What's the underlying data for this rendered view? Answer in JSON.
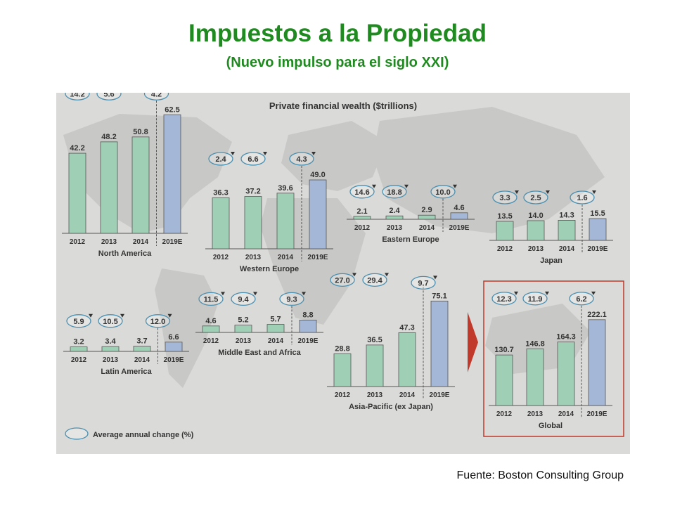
{
  "header": {
    "title": "Impuestos a la Propiedad",
    "subtitle": "(Nuevo impulso para el siglo XXI)"
  },
  "source": "Fuente: Boston Consulting Group",
  "colors": {
    "title": "#1f8a1f",
    "bar_actual": "#9fcfb4",
    "bar_forecast": "#a4b7d6",
    "bubble_outline": "#4a8fb0",
    "background": "#dadad8",
    "map": "#c8c8c6",
    "highlight_box": "#c0392b",
    "arrow": "#c0392b"
  },
  "chart_data": {
    "type": "bar",
    "title": "Private financial wealth ($trillions)",
    "legend": {
      "label": "Average annual change (%)",
      "placement": "bottom-left"
    },
    "categories": [
      "2012",
      "2013",
      "2014",
      "2019E"
    ],
    "regions": [
      {
        "name": "North America",
        "values": [
          42.2,
          48.2,
          50.8,
          62.5
        ],
        "changes": [
          "14.2",
          "5.6",
          "4.2"
        ]
      },
      {
        "name": "Western Europe",
        "values": [
          36.3,
          37.2,
          39.6,
          49.0
        ],
        "changes": [
          "2.4",
          "6.6",
          "4.3"
        ]
      },
      {
        "name": "Eastern Europe",
        "values": [
          2.1,
          2.4,
          2.9,
          4.6
        ],
        "changes": [
          "14.6",
          "18.8",
          "10.0"
        ]
      },
      {
        "name": "Japan",
        "values": [
          13.5,
          14.0,
          14.3,
          15.5
        ],
        "changes": [
          "3.3",
          "2.5",
          "1.6"
        ]
      },
      {
        "name": "Latin America",
        "values": [
          3.2,
          3.4,
          3.7,
          6.6
        ],
        "changes": [
          "5.9",
          "10.5",
          "12.0"
        ]
      },
      {
        "name": "Middle East and Africa",
        "values": [
          4.6,
          5.2,
          5.7,
          8.8
        ],
        "changes": [
          "11.5",
          "9.4",
          "9.3"
        ]
      },
      {
        "name": "Asia-Pacific (ex Japan)",
        "values": [
          28.8,
          36.5,
          47.3,
          75.1
        ],
        "changes": [
          "27.0",
          "29.4",
          "9.7"
        ]
      },
      {
        "name": "Global",
        "values": [
          130.7,
          146.8,
          164.3,
          222.1
        ],
        "changes": [
          "12.3",
          "11.9",
          "6.2"
        ]
      }
    ]
  }
}
